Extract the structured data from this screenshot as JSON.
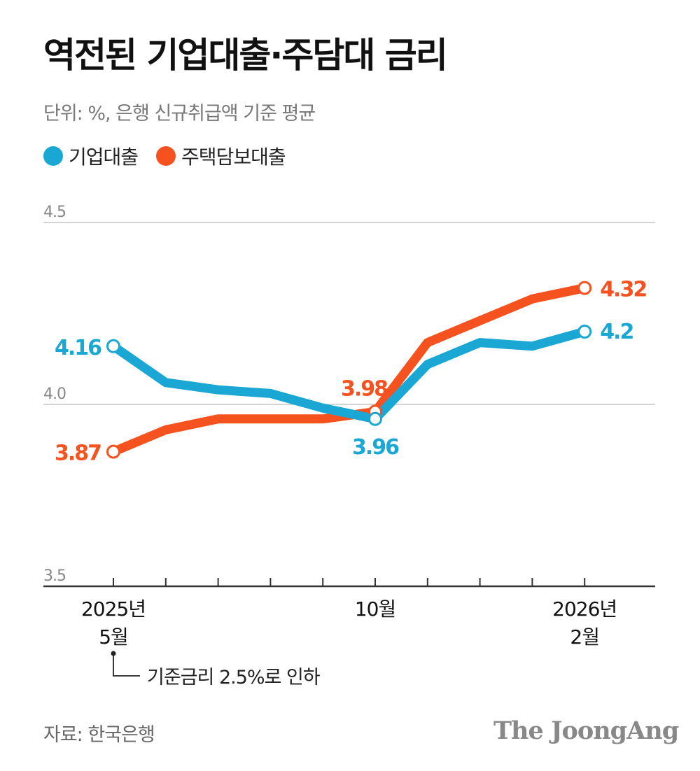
{
  "title": "역전된 기업대출·주담대 금리",
  "subtitle": "단위: %, 은행 신규취급액 기준 평균",
  "source": "자료: 한국은행",
  "logo": "The JoongAng",
  "annotation": "기준금리 2.5%로 인하",
  "colors": {
    "corporate": "#1aa7d4",
    "mortgage": "#f5521f",
    "grid": "#d4d4d4",
    "axis": "#333333"
  },
  "chart_data": {
    "type": "line",
    "x": [
      "2025-05",
      "2025-06",
      "2025-07",
      "2025-08",
      "2025-09",
      "2025-10",
      "2025-11",
      "2025-12",
      "2026-01",
      "2026-02"
    ],
    "x_tick_labels": [
      {
        "x": "2025-05",
        "lines": [
          "2025년",
          "5월"
        ]
      },
      {
        "x": "2025-10",
        "lines": [
          "10월"
        ]
      },
      {
        "x": "2026-02",
        "lines": [
          "2026년",
          "2월"
        ]
      }
    ],
    "ylim": [
      3.5,
      4.5
    ],
    "y_ticks": [
      "4.5",
      "4.0",
      "3.5"
    ],
    "series": [
      {
        "name": "기업대출",
        "color": "#1aa7d4",
        "values": [
          4.16,
          4.06,
          4.04,
          4.03,
          3.99,
          3.96,
          4.11,
          4.17,
          4.16,
          4.2
        ],
        "labels": [
          {
            "x": "2025-05",
            "text": "4.16"
          },
          {
            "x": "2025-10",
            "text": "3.96"
          },
          {
            "x": "2026-02",
            "text": "4.2"
          }
        ]
      },
      {
        "name": "주택담보대출",
        "color": "#f5521f",
        "values": [
          3.87,
          3.93,
          3.96,
          3.96,
          3.96,
          3.98,
          4.17,
          4.23,
          4.29,
          4.32
        ],
        "labels": [
          {
            "x": "2025-05",
            "text": "3.87"
          },
          {
            "x": "2025-10",
            "text": "3.98"
          },
          {
            "x": "2026-02",
            "text": "4.32"
          }
        ]
      }
    ]
  }
}
